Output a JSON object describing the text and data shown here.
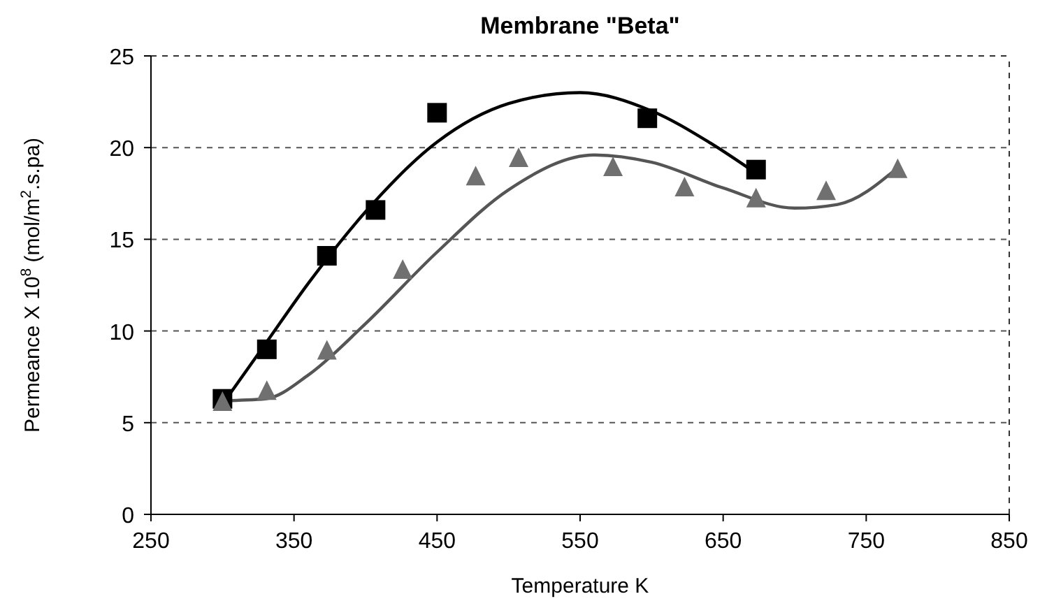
{
  "chart_data": {
    "type": "scatter",
    "title": "Membrane \"Beta\"",
    "xlabel": "Temperature K",
    "ylabel": "Permeance X 10$^{8}$ (mol/m$^{2}$.s.pa)",
    "xlim": [
      250,
      850
    ],
    "xticks": [
      250,
      350,
      450,
      550,
      650,
      750,
      850
    ],
    "ylim": [
      0,
      25
    ],
    "yticks": [
      0,
      5,
      10,
      15,
      20,
      25
    ],
    "grid": "y",
    "series": [
      {
        "type": "line",
        "color": "#000000",
        "marker": "none",
        "x": [
          300,
          330,
          360,
          400,
          450,
          500,
          550,
          600,
          640,
          673
        ],
        "values": [
          6.0,
          9.3,
          12.6,
          16.5,
          20.3,
          22.4,
          23.0,
          22.0,
          20.3,
          18.6
        ]
      },
      {
        "type": "line",
        "color": "#555555",
        "marker": "none",
        "x": [
          300,
          330,
          360,
          400,
          450,
          500,
          560,
          600,
          650,
          700,
          730,
          772
        ],
        "values": [
          6.2,
          6.3,
          7.6,
          10.4,
          14.3,
          17.7,
          19.6,
          19.2,
          17.8,
          16.7,
          16.9,
          18.9
        ]
      },
      {
        "color": "#000000",
        "marker": "square",
        "x": [
          300,
          331,
          373,
          407,
          450,
          597,
          673
        ],
        "values": [
          6.3,
          9.0,
          14.1,
          16.6,
          21.9,
          21.6,
          18.8
        ]
      },
      {
        "color": "#707070",
        "marker": "triangle",
        "x": [
          300,
          331,
          373,
          426,
          477,
          507,
          573,
          623,
          673,
          722,
          772
        ],
        "values": [
          6.1,
          6.7,
          8.9,
          13.3,
          18.4,
          19.4,
          18.9,
          17.8,
          17.2,
          17.6,
          18.8
        ]
      }
    ]
  }
}
